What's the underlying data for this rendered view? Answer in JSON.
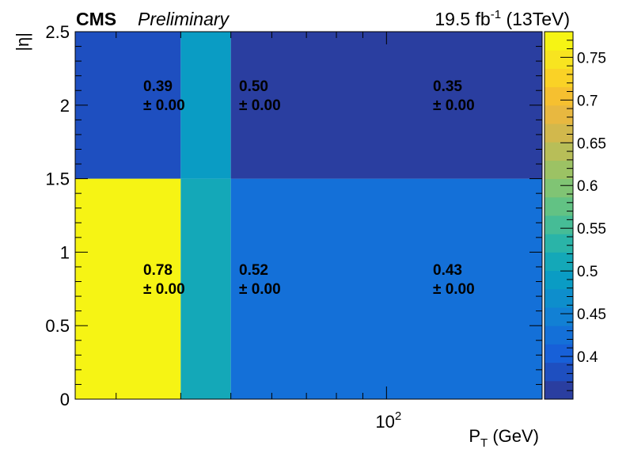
{
  "header": {
    "experiment": "CMS",
    "status": "Preliminary",
    "lumi_value": "19.5 fb",
    "lumi_exponent": "-1",
    "energy": " (13TeV)"
  },
  "chart_data": {
    "type": "heatmap",
    "xlabel_main": "P",
    "xlabel_sub": "T",
    "xlabel_unit": " (GeV)",
    "ylabel": "|η|",
    "x_scale": "log",
    "x_bin_edges": [
      25,
      40,
      50,
      200
    ],
    "y_bin_edges": [
      0,
      1.5,
      2.5
    ],
    "xlim": [
      25,
      200
    ],
    "ylim": [
      0,
      2.5
    ],
    "x_tick_labels": [
      {
        "value": 100,
        "base": "10",
        "exp": "2"
      }
    ],
    "y_tick_values": [
      0,
      0.5,
      1,
      1.5,
      2,
      2.5
    ],
    "y_tick_labels": [
      "0",
      "0.5",
      "1",
      "1.5",
      "2",
      "2.5"
    ],
    "values": [
      [
        0.78,
        0.52,
        0.43
      ],
      [
        0.39,
        0.5,
        0.35
      ]
    ],
    "cell_labels": [
      [
        {
          "value": "0.78",
          "err": "± 0.00"
        },
        {
          "value": "0.52",
          "err": "± 0.00"
        },
        {
          "value": "0.43",
          "err": "± 0.00"
        }
      ],
      [
        {
          "value": "0.39",
          "err": "± 0.00"
        },
        {
          "value": "0.50",
          "err": "± 0.00"
        },
        {
          "value": "0.35",
          "err": "± 0.00"
        }
      ]
    ],
    "colorbar": {
      "range": [
        0.35,
        0.78
      ],
      "tick_values": [
        0.4,
        0.45,
        0.5,
        0.55,
        0.6,
        0.65,
        0.7,
        0.75
      ],
      "tick_labels": [
        "0.4",
        "0.45",
        "0.5",
        "0.55",
        "0.6",
        "0.65",
        "0.7",
        "0.75"
      ],
      "palette": [
        "#2a3ea0",
        "#1e4fc0",
        "#1760d8",
        "#1470d8",
        "#1280d4",
        "#0e8ecc",
        "#0a9cc4",
        "#14a8b8",
        "#2ab4a8",
        "#46bc96",
        "#62c284",
        "#80c474",
        "#9cc264",
        "#b8be58",
        "#d2b84c",
        "#e8b840",
        "#f6c030",
        "#fad226",
        "#f8e420",
        "#f6f414"
      ]
    }
  }
}
